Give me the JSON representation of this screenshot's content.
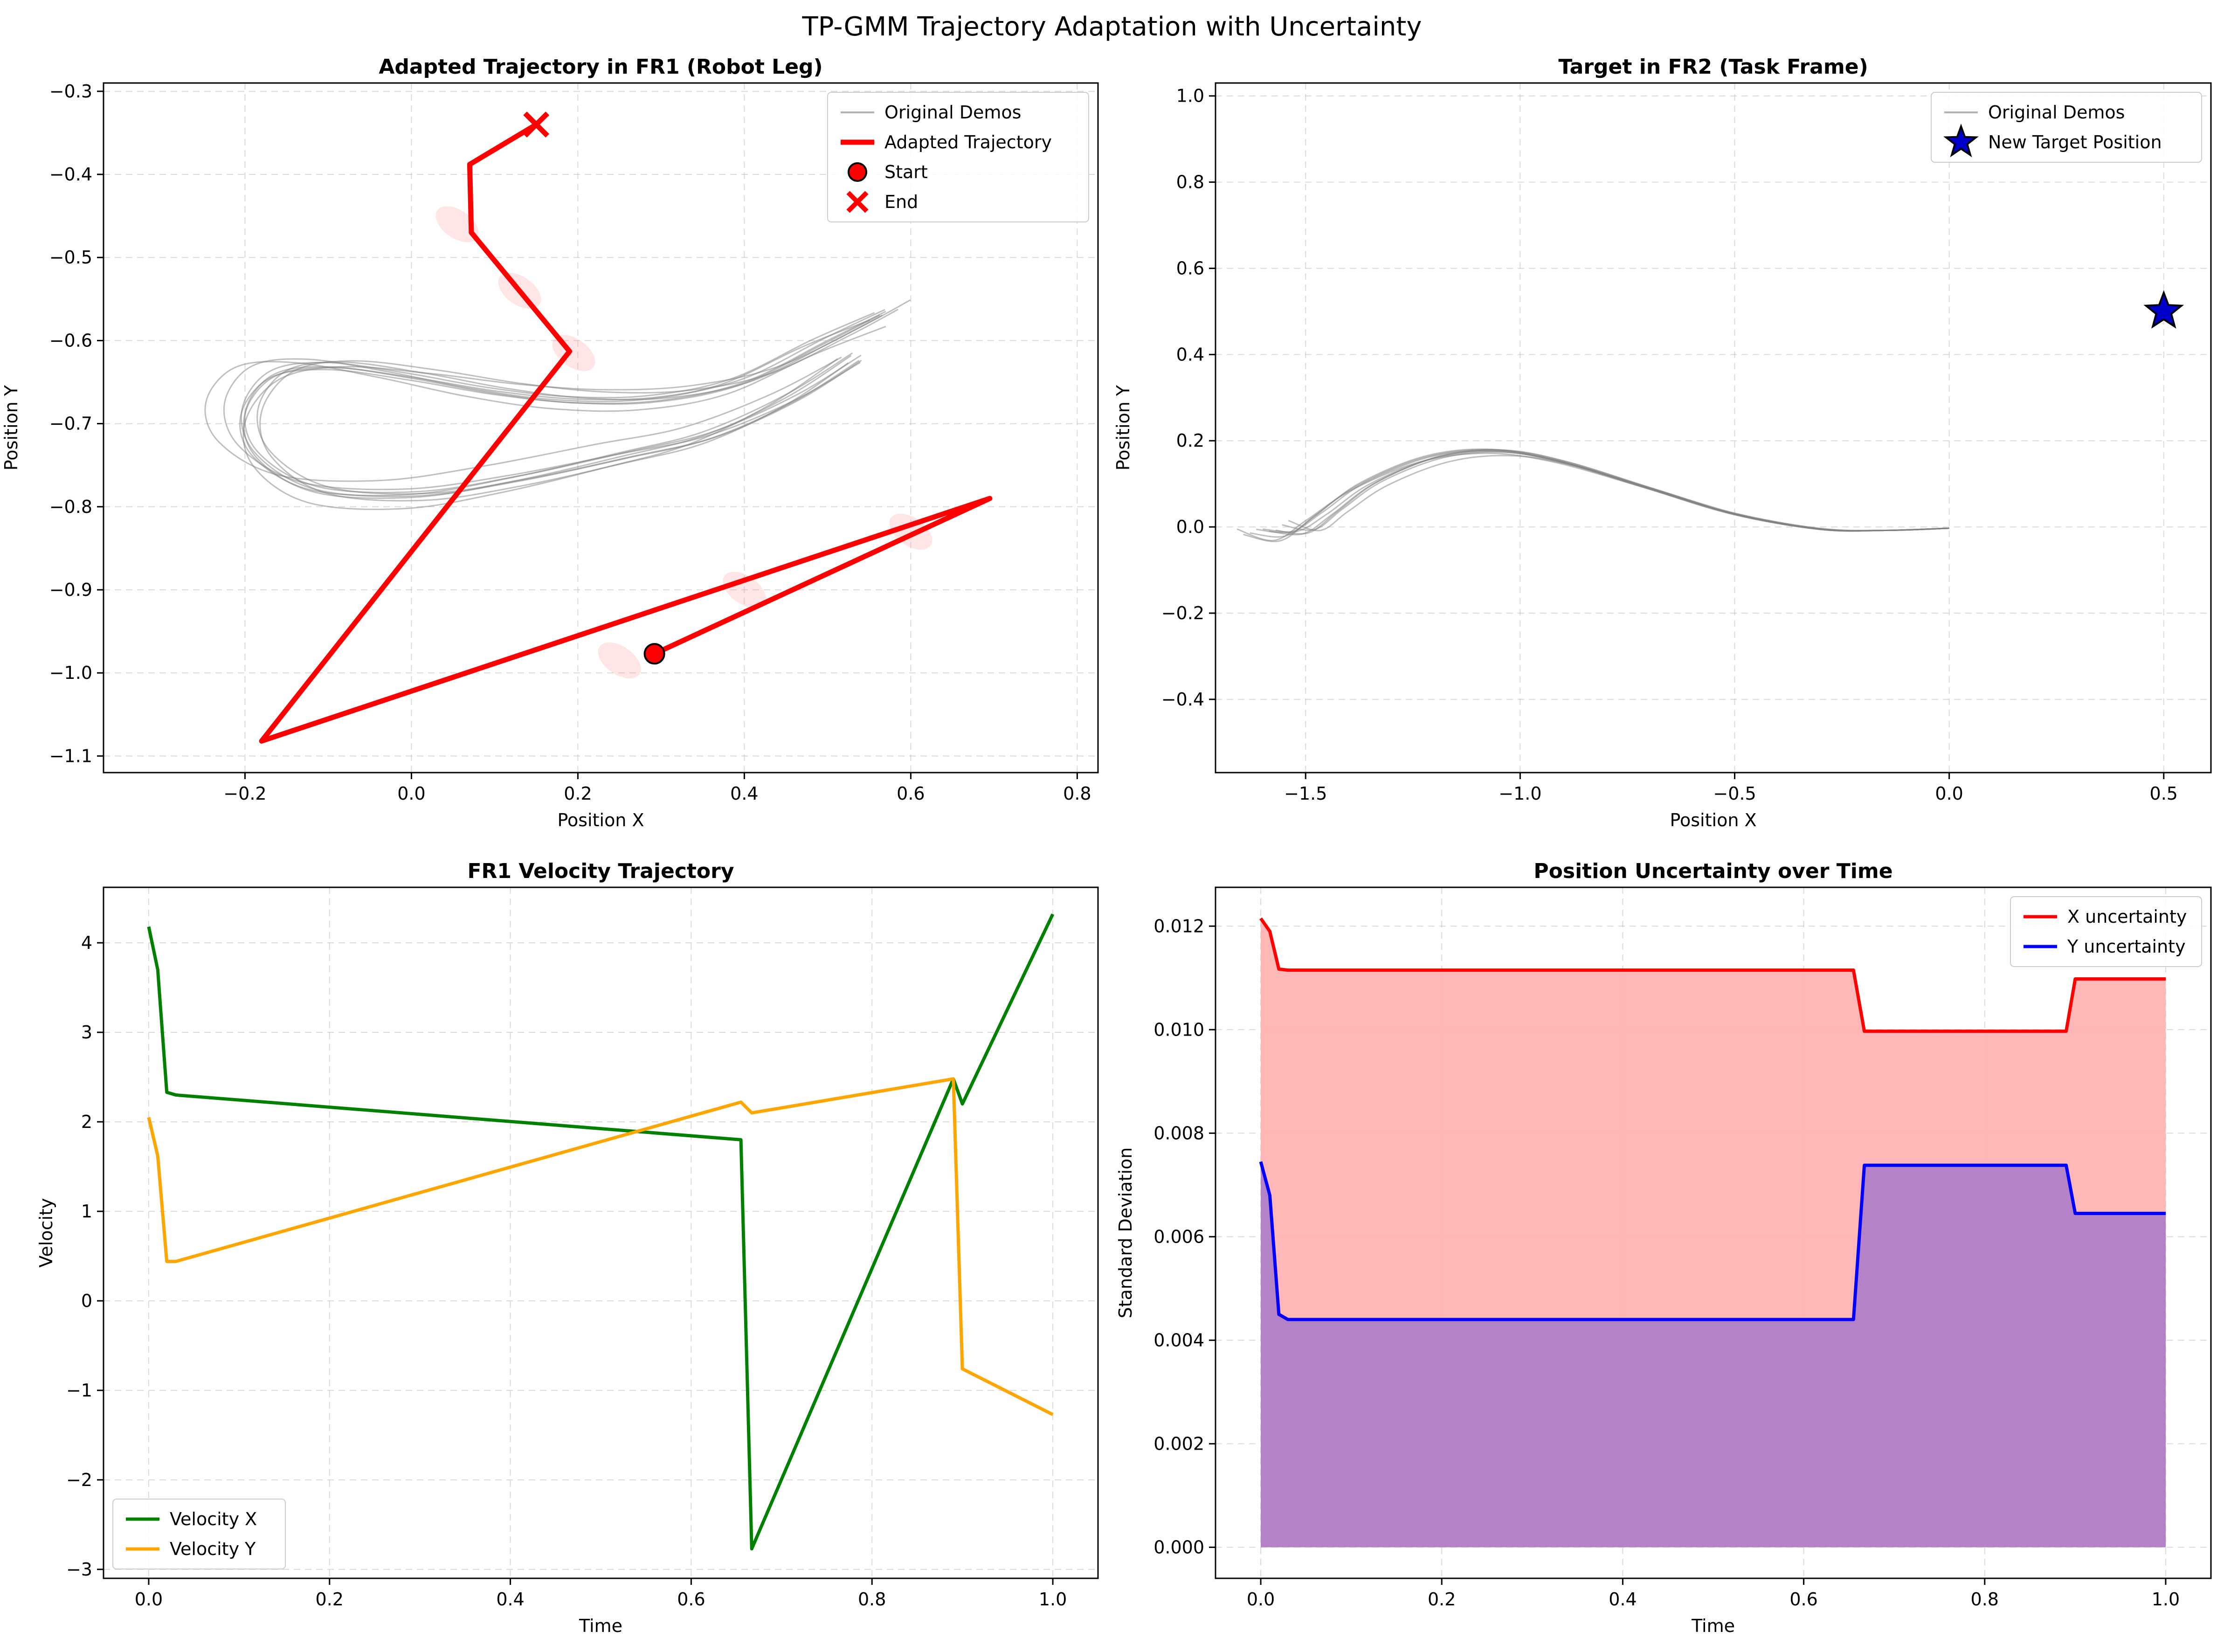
{
  "figure": {
    "title": "TP-GMM Trajectory Adaptation with Uncertainty"
  },
  "chart_data": [
    {
      "id": "fr1",
      "type": "line",
      "title": "Adapted Trajectory in FR1 (Robot Leg)",
      "xlabel": "Position X",
      "ylabel": "Position Y",
      "xlim": [
        -0.37,
        0.825
      ],
      "ylim": [
        -1.12,
        -0.29
      ],
      "xticks": [
        -0.2,
        0.0,
        0.2,
        0.4,
        0.6,
        0.8
      ],
      "xtick_labels": [
        "−0.2",
        "0.0",
        "0.2",
        "0.4",
        "0.6",
        "0.8"
      ],
      "yticks": [
        -1.1,
        -1.0,
        -0.9,
        -0.8,
        -0.7,
        -0.6,
        -0.5,
        -0.4,
        -0.3
      ],
      "ytick_labels": [
        "−1.1",
        "−1.0",
        "−0.9",
        "−0.8",
        "−0.7",
        "−0.6",
        "−0.5",
        "−0.4",
        "−0.3"
      ],
      "grid": true,
      "legend_position": "top-right",
      "legend": [
        "Original Demos",
        "Adapted Trajectory",
        "Start",
        "End"
      ],
      "demos": {
        "name": "Original Demos",
        "color": "#808080",
        "count": 9,
        "base": [
          [
            0.57,
            -0.565
          ],
          [
            0.5,
            -0.6
          ],
          [
            0.4,
            -0.65
          ],
          [
            0.3,
            -0.672
          ],
          [
            0.2,
            -0.675
          ],
          [
            0.1,
            -0.665
          ],
          [
            0.0,
            -0.648
          ],
          [
            -0.1,
            -0.635
          ],
          [
            -0.17,
            -0.645
          ],
          [
            -0.205,
            -0.69
          ],
          [
            -0.19,
            -0.74
          ],
          [
            -0.12,
            -0.78
          ],
          [
            0.0,
            -0.785
          ],
          [
            0.12,
            -0.765
          ],
          [
            0.25,
            -0.735
          ],
          [
            0.35,
            -0.71
          ],
          [
            0.45,
            -0.665
          ],
          [
            0.53,
            -0.615
          ]
        ]
      },
      "adapted": {
        "name": "Adapted Trajectory",
        "color": "#ff0000",
        "points": [
          [
            0.292,
            -0.977
          ],
          [
            0.695,
            -0.79
          ],
          [
            -0.18,
            -1.082
          ],
          [
            0.19,
            -0.613
          ],
          [
            0.072,
            -0.47
          ],
          [
            0.07,
            -0.388
          ],
          [
            0.15,
            -0.34
          ]
        ]
      },
      "uncertainty_ellipses": [
        [
          0.055,
          -0.46
        ],
        [
          0.13,
          -0.54
        ],
        [
          0.195,
          -0.615
        ],
        [
          0.25,
          -0.985
        ],
        [
          0.4,
          -0.9
        ],
        [
          0.6,
          -0.83
        ]
      ],
      "start": {
        "name": "Start",
        "x": 0.292,
        "y": -0.977,
        "color": "#ff0000"
      },
      "end": {
        "name": "End",
        "x": 0.15,
        "y": -0.34,
        "color": "#ff0000"
      }
    },
    {
      "id": "fr2",
      "type": "line",
      "title": "Target in FR2 (Task Frame)",
      "xlabel": "Position X",
      "ylabel": "Position Y",
      "xlim": [
        -1.71,
        0.61
      ],
      "ylim": [
        -0.57,
        1.03
      ],
      "xticks": [
        -1.5,
        -1.0,
        -0.5,
        0.0,
        0.5
      ],
      "xtick_labels": [
        "−1.5",
        "−1.0",
        "−0.5",
        "0.0",
        "0.5"
      ],
      "yticks": [
        -0.4,
        -0.2,
        0.0,
        0.2,
        0.4,
        0.6,
        0.8,
        1.0
      ],
      "ytick_labels": [
        "−0.4",
        "−0.2",
        "0.0",
        "0.2",
        "0.4",
        "0.6",
        "0.8",
        "1.0"
      ],
      "grid": true,
      "legend_position": "top-right",
      "legend": [
        "Original Demos",
        "New Target Position"
      ],
      "demos": {
        "name": "Original Demos",
        "color": "#808080",
        "count": 9,
        "base": [
          [
            -1.6,
            -0.005
          ],
          [
            -1.52,
            -0.01
          ],
          [
            -1.45,
            0.03
          ],
          [
            -1.35,
            0.1
          ],
          [
            -1.2,
            0.16
          ],
          [
            -1.05,
            0.175
          ],
          [
            -0.9,
            0.15
          ],
          [
            -0.7,
            0.09
          ],
          [
            -0.5,
            0.03
          ],
          [
            -0.3,
            -0.005
          ],
          [
            -0.15,
            -0.008
          ],
          [
            0.0,
            -0.003
          ]
        ]
      },
      "target": {
        "name": "New Target Position",
        "x": 0.5,
        "y": 0.5,
        "color": "#0000cc"
      }
    },
    {
      "id": "vel",
      "type": "line",
      "title": "FR1 Velocity Trajectory",
      "xlabel": "Time",
      "ylabel": "Velocity",
      "xlim": [
        -0.05,
        1.05
      ],
      "ylim": [
        -3.1,
        4.62
      ],
      "xticks": [
        0.0,
        0.2,
        0.4,
        0.6,
        0.8,
        1.0
      ],
      "xtick_labels": [
        "0.0",
        "0.2",
        "0.4",
        "0.6",
        "0.8",
        "1.0"
      ],
      "yticks": [
        -3,
        -2,
        -1,
        0,
        1,
        2,
        3,
        4
      ],
      "ytick_labels": [
        "−3",
        "−2",
        "−1",
        "0",
        "1",
        "2",
        "3",
        "4"
      ],
      "grid": true,
      "legend_position": "bottom-left",
      "series": [
        {
          "name": "Velocity X",
          "color": "#008000",
          "x": [
            0.0,
            0.01,
            0.02,
            0.03,
            0.655,
            0.667,
            0.89,
            0.9,
            1.0
          ],
          "values": [
            4.18,
            3.7,
            2.33,
            2.3,
            1.8,
            -2.77,
            2.48,
            2.2,
            4.32
          ]
        },
        {
          "name": "Velocity Y",
          "color": "#ffa500",
          "x": [
            0.0,
            0.01,
            0.02,
            0.03,
            0.655,
            0.667,
            0.89,
            0.9,
            1.0
          ],
          "values": [
            2.05,
            1.62,
            0.44,
            0.44,
            2.22,
            2.1,
            2.48,
            -0.76,
            -1.27
          ]
        }
      ]
    },
    {
      "id": "unc",
      "type": "area",
      "title": "Position Uncertainty over Time",
      "xlabel": "Time",
      "ylabel": "Standard Deviation",
      "xlim": [
        -0.05,
        1.05
      ],
      "ylim": [
        -0.0006,
        0.01275
      ],
      "xticks": [
        0.0,
        0.2,
        0.4,
        0.6,
        0.8,
        1.0
      ],
      "xtick_labels": [
        "0.0",
        "0.2",
        "0.4",
        "0.6",
        "0.8",
        "1.0"
      ],
      "yticks": [
        0.0,
        0.002,
        0.004,
        0.006,
        0.008,
        0.01,
        0.012
      ],
      "ytick_labels": [
        "0.000",
        "0.002",
        "0.004",
        "0.006",
        "0.008",
        "0.010",
        "0.012"
      ],
      "grid": true,
      "legend_position": "top-right",
      "series": [
        {
          "name": "X uncertainty",
          "color": "#ff0000",
          "fill": "#ffb3b3",
          "x": [
            0.0,
            0.01,
            0.02,
            0.03,
            0.655,
            0.667,
            0.89,
            0.9,
            1.0
          ],
          "values": [
            0.01215,
            0.0119,
            0.01117,
            0.01115,
            0.01115,
            0.00997,
            0.00997,
            0.01098,
            0.01098
          ]
        },
        {
          "name": "Y uncertainty",
          "color": "#0000ff",
          "fill": "#b07fc7",
          "x": [
            0.0,
            0.01,
            0.02,
            0.03,
            0.655,
            0.667,
            0.89,
            0.9,
            1.0
          ],
          "values": [
            0.00745,
            0.0068,
            0.0045,
            0.0044,
            0.0044,
            0.00738,
            0.00738,
            0.00645,
            0.00645
          ]
        }
      ]
    }
  ]
}
